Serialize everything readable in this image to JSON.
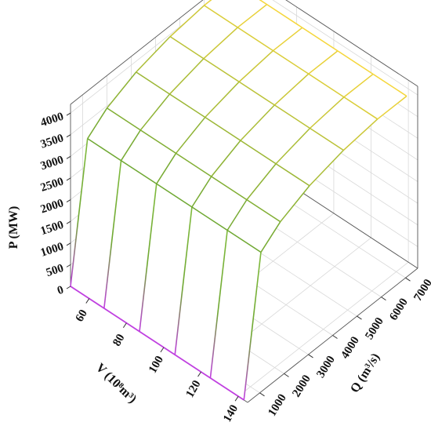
{
  "chart_data": {
    "type": "surface3d",
    "zlabel": "P (MW)",
    "vlabel": "V (10⁸m³)",
    "qlabel": "Q (m³/s)",
    "z_ticks": [
      0,
      500,
      1000,
      1500,
      2000,
      2500,
      3000,
      3500,
      4000
    ],
    "v_ticks": [
      60,
      80,
      100,
      120,
      140
    ],
    "q_ticks": [
      1000,
      2000,
      3000,
      4000,
      5000,
      6000,
      7000
    ],
    "zlim": [
      0,
      4200
    ],
    "vlim": [
      50,
      145
    ],
    "qlim": [
      500,
      7500
    ],
    "v_values": [
      50,
      68,
      87,
      106,
      125,
      143
    ],
    "q_values": [
      500,
      1200,
      2000,
      3200,
      4600,
      6000,
      7200
    ],
    "P": [
      [
        0,
        3100,
        3450,
        3750,
        3950,
        4050,
        4050
      ],
      [
        0,
        3100,
        3450,
        3750,
        3950,
        4050,
        4050
      ],
      [
        0,
        3100,
        3450,
        3750,
        3950,
        4050,
        4050
      ],
      [
        0,
        3100,
        3450,
        3750,
        3950,
        4050,
        4050
      ],
      [
        0,
        3100,
        3450,
        3750,
        3950,
        4050,
        4050
      ],
      [
        0,
        3100,
        3450,
        3750,
        3950,
        4050,
        4050
      ]
    ],
    "grid": true,
    "colors": {
      "low": "#c040e0",
      "mid": "#6fa832",
      "high": "#f5d63a"
    }
  }
}
